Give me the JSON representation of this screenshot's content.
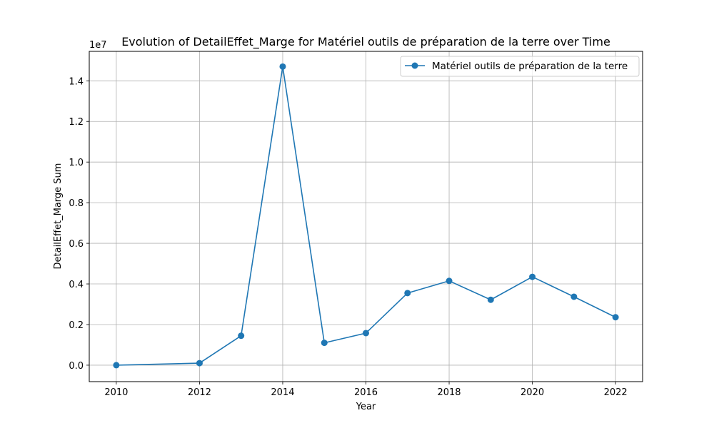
{
  "chart_data": {
    "type": "line",
    "title": "Evolution of DetailEffet_Marge for Matériel outils de préparation de la terre over Time",
    "xlabel": "Year",
    "ylabel": "DetailEffet_Marge Sum",
    "offset_label": "1e7",
    "xlim": [
      2009.35,
      2022.65
    ],
    "ylim": [
      -810000,
      15450000
    ],
    "x_ticks": [
      2010,
      2012,
      2014,
      2016,
      2018,
      2020,
      2022
    ],
    "x_tick_labels": [
      "2010",
      "2012",
      "2014",
      "2016",
      "2018",
      "2020",
      "2022"
    ],
    "y_ticks": [
      0,
      2000000,
      4000000,
      6000000,
      8000000,
      10000000,
      12000000,
      14000000
    ],
    "y_tick_labels": [
      "0.0",
      "0.2",
      "0.4",
      "0.6",
      "0.8",
      "1.0",
      "1.2",
      "1.4"
    ],
    "grid": true,
    "legend_position": "top-right",
    "series": [
      {
        "name": "Matériel outils de préparation de la terre",
        "color": "#1f77b4",
        "marker": "circle",
        "x": [
          2010,
          2012,
          2013,
          2014,
          2015,
          2016,
          2017,
          2018,
          2019,
          2020,
          2021,
          2022
        ],
        "y": [
          0,
          100000,
          1450000,
          14700000,
          1100000,
          1580000,
          3550000,
          4150000,
          3220000,
          4350000,
          3370000,
          2360000
        ]
      }
    ]
  }
}
